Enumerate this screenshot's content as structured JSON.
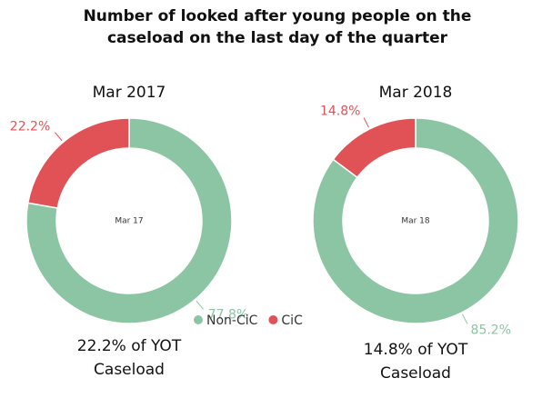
{
  "title": "Number of looked after young people on the caseload  on the last day of the quarter",
  "chart_data": [
    {
      "type": "donut",
      "title": "Mar 2017",
      "center_label": "Mar 17",
      "categories": [
        "Non-CiC",
        "CiC"
      ],
      "values": [
        77.8,
        22.2
      ],
      "value_labels": [
        "77.8%",
        "22.2%"
      ],
      "colors": [
        "#8cc5a4",
        "#e05256"
      ],
      "legend": true,
      "caption": "22.2% of YOT Caseload"
    },
    {
      "type": "donut",
      "title": "Mar 2018",
      "center_label": "Mar 18",
      "categories": [
        "Non-CiC",
        "CiC"
      ],
      "values": [
        85.2,
        14.8
      ],
      "value_labels": [
        "85.2%",
        "14.8%"
      ],
      "colors": [
        "#8cc5a4",
        "#e05256"
      ],
      "caption": "14.8% of YOT Caseload"
    }
  ]
}
